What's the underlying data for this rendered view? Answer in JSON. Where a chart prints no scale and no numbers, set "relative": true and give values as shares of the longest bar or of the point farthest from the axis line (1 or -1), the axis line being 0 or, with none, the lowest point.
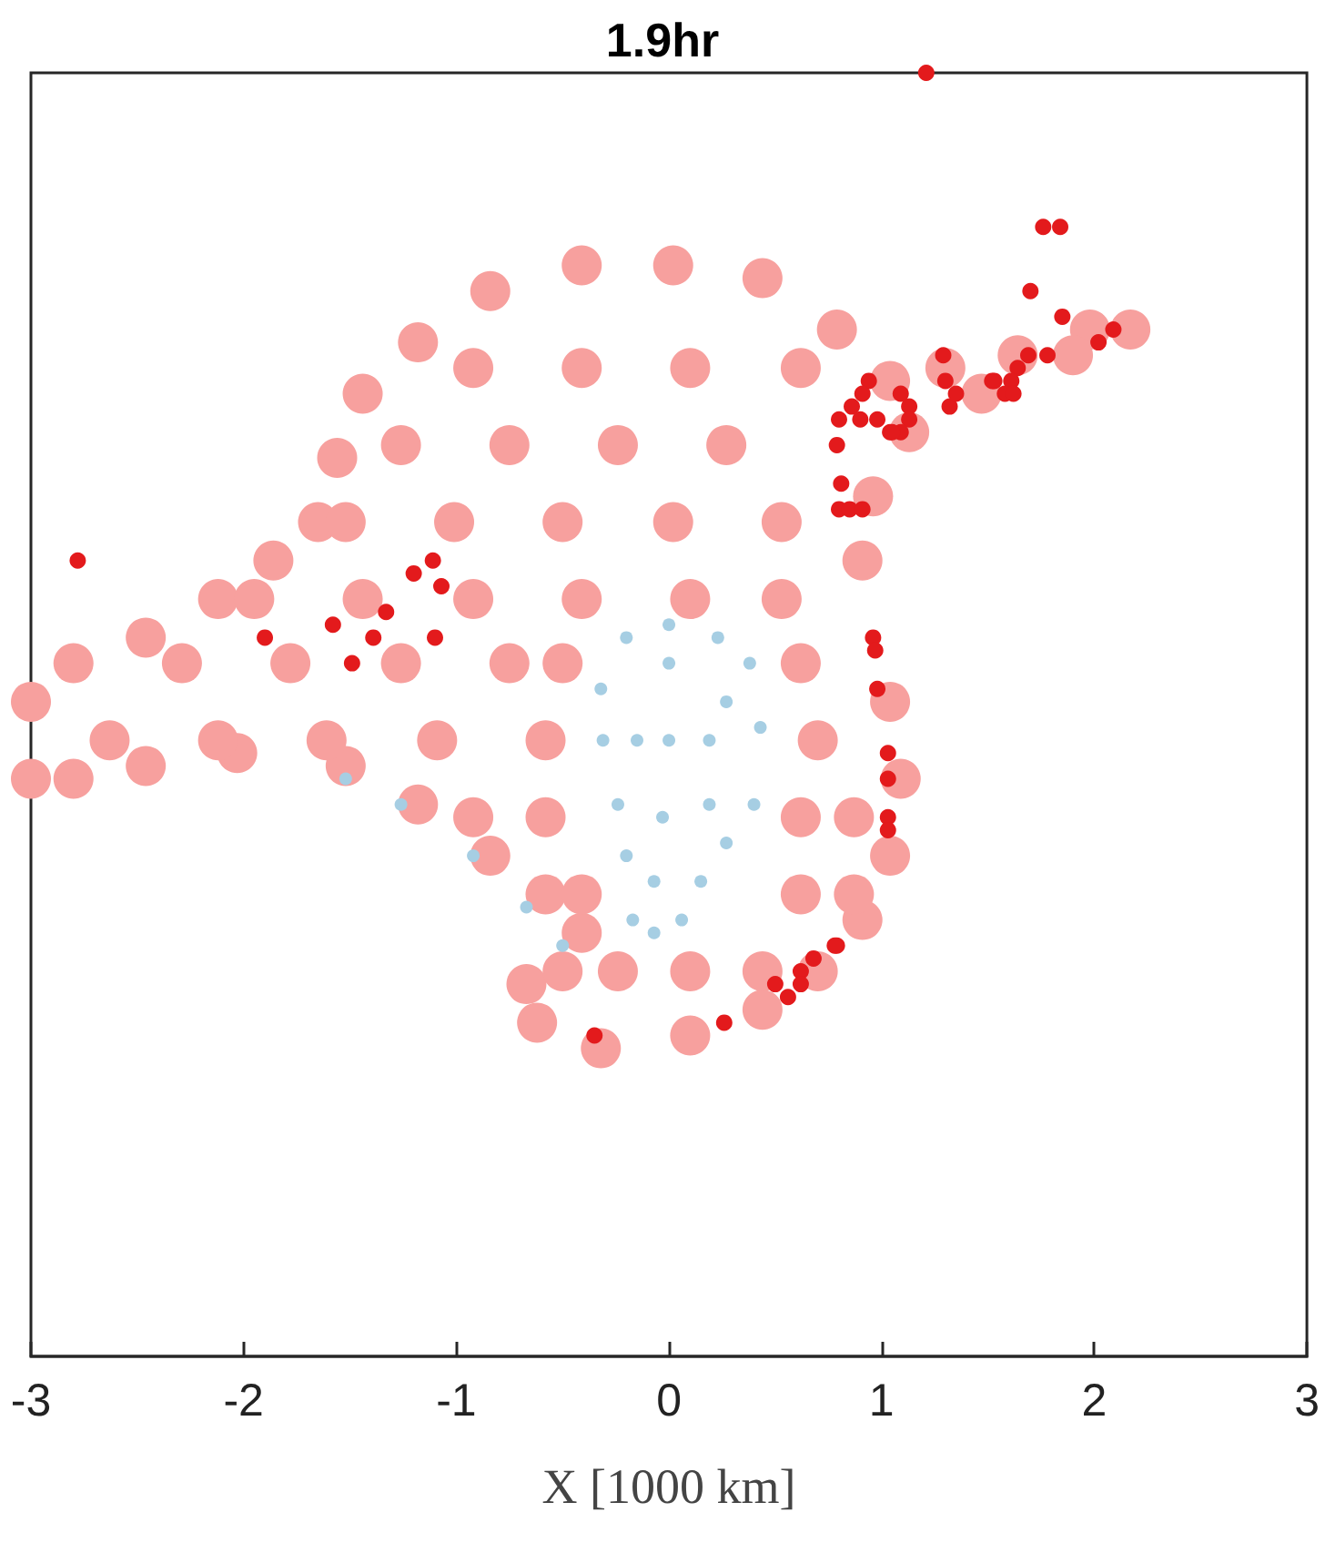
{
  "chart_data": {
    "type": "scatter",
    "title": "1.9hr",
    "xlabel": "X [1000 km]",
    "xlim": [
      -3,
      3
    ],
    "xticks": [
      -3,
      -2,
      -1,
      0,
      1,
      2,
      3
    ],
    "relative": true,
    "tick_labels": "x",
    "marker": "circle",
    "series": [
      {
        "color": "#f7a09e",
        "x": [
          -3.0,
          -2.8,
          -2.46,
          -2.12,
          -1.86,
          -1.65,
          -1.56,
          -1.44,
          -1.18,
          -0.84,
          -0.41,
          0.02,
          0.44,
          0.79,
          1.04,
          1.3,
          1.64,
          1.98,
          2.17,
          1.9,
          1.47,
          1.13,
          0.96,
          0.91,
          1.04,
          1.09,
          1.04,
          0.91,
          0.7,
          0.44,
          0.1,
          -0.32,
          -0.62,
          -0.67,
          -0.5,
          -0.41,
          -0.58,
          -0.84,
          -1.18,
          -1.52,
          -2.03,
          -2.46,
          -2.8,
          -3.0,
          -0.92,
          -0.41,
          0.1,
          0.62,
          -1.26,
          -0.75,
          -0.24,
          0.27,
          -1.52,
          -1.01,
          -0.5,
          0.02,
          0.53,
          -1.95,
          -1.44,
          -0.92,
          -0.41,
          0.1,
          0.53,
          -2.29,
          -1.78,
          -1.26,
          -0.75,
          -0.5,
          0.62,
          -2.63,
          -2.12,
          -1.61,
          -1.09,
          -0.58,
          0.7,
          -0.92,
          -0.58,
          0.62,
          0.87,
          -0.41,
          0.62,
          0.87,
          -0.24,
          0.1,
          0.44
        ],
        "values": [
          0.51,
          0.54,
          0.56,
          0.59,
          0.62,
          0.65,
          0.7,
          0.75,
          0.79,
          0.83,
          0.85,
          0.85,
          0.84,
          0.8,
          0.76,
          0.77,
          0.78,
          0.8,
          0.8,
          0.78,
          0.75,
          0.72,
          0.67,
          0.62,
          0.51,
          0.45,
          0.39,
          0.34,
          0.3,
          0.27,
          0.25,
          0.24,
          0.26,
          0.29,
          0.3,
          0.33,
          0.36,
          0.39,
          0.43,
          0.46,
          0.47,
          0.46,
          0.45,
          0.45,
          0.77,
          0.77,
          0.77,
          0.77,
          0.71,
          0.71,
          0.71,
          0.71,
          0.65,
          0.65,
          0.65,
          0.65,
          0.65,
          0.59,
          0.59,
          0.59,
          0.59,
          0.59,
          0.59,
          0.54,
          0.54,
          0.54,
          0.54,
          0.54,
          0.54,
          0.48,
          0.48,
          0.48,
          0.48,
          0.48,
          0.48,
          0.42,
          0.42,
          0.42,
          0.42,
          0.36,
          0.36,
          0.36,
          0.3,
          0.3,
          0.3
        ]
      },
      {
        "color": "#a6cee3",
        "x": [
          0.0,
          0.23,
          0.38,
          0.43,
          0.4,
          0.27,
          0.15,
          0.06,
          -0.07,
          -0.17,
          -0.2,
          -0.24,
          -0.31,
          -0.32,
          -0.2,
          0.0,
          0.0,
          0.19,
          -0.03,
          0.19,
          -0.07,
          -0.15,
          0.27,
          -1.52,
          -1.26,
          -0.92,
          -0.67,
          -0.5
        ],
        "values": [
          0.57,
          0.56,
          0.54,
          0.49,
          0.43,
          0.4,
          0.37,
          0.34,
          0.33,
          0.34,
          0.39,
          0.43,
          0.48,
          0.52,
          0.56,
          0.54,
          0.48,
          0.48,
          0.42,
          0.43,
          0.37,
          0.48,
          0.51,
          0.45,
          0.43,
          0.39,
          0.35,
          0.32
        ]
      },
      {
        "color": "#e31a1c",
        "x": [
          1.21,
          1.76,
          1.84,
          1.7,
          1.85,
          2.02,
          2.09,
          1.78,
          1.29,
          1.69,
          1.64,
          1.53,
          1.52,
          1.61,
          1.58,
          1.62,
          1.3,
          1.32,
          1.35,
          0.94,
          0.91,
          0.86,
          0.9,
          1.09,
          1.13,
          1.13,
          1.09,
          1.04,
          1.05,
          0.8,
          0.79,
          0.81,
          0.8,
          0.85,
          0.91,
          0.98,
          -2.78,
          -1.9,
          -1.58,
          -1.49,
          -1.39,
          -1.33,
          -1.2,
          -1.11,
          -1.07,
          -1.1,
          0.96,
          0.97,
          0.98,
          1.03,
          1.03,
          1.03,
          1.03,
          0.79,
          0.78,
          0.68,
          0.62,
          0.62,
          0.56,
          0.5,
          0.26,
          -0.35
        ],
        "values": [
          1.0,
          0.88,
          0.88,
          0.83,
          0.81,
          0.79,
          0.8,
          0.78,
          0.78,
          0.78,
          0.77,
          0.76,
          0.76,
          0.76,
          0.75,
          0.75,
          0.76,
          0.74,
          0.75,
          0.76,
          0.75,
          0.74,
          0.73,
          0.75,
          0.74,
          0.73,
          0.72,
          0.72,
          0.72,
          0.73,
          0.71,
          0.68,
          0.66,
          0.66,
          0.66,
          0.73,
          0.62,
          0.56,
          0.57,
          0.54,
          0.56,
          0.58,
          0.61,
          0.62,
          0.6,
          0.56,
          0.56,
          0.55,
          0.52,
          0.47,
          0.45,
          0.42,
          0.41,
          0.32,
          0.32,
          0.31,
          0.3,
          0.29,
          0.28,
          0.29,
          0.26,
          0.25
        ]
      }
    ]
  }
}
